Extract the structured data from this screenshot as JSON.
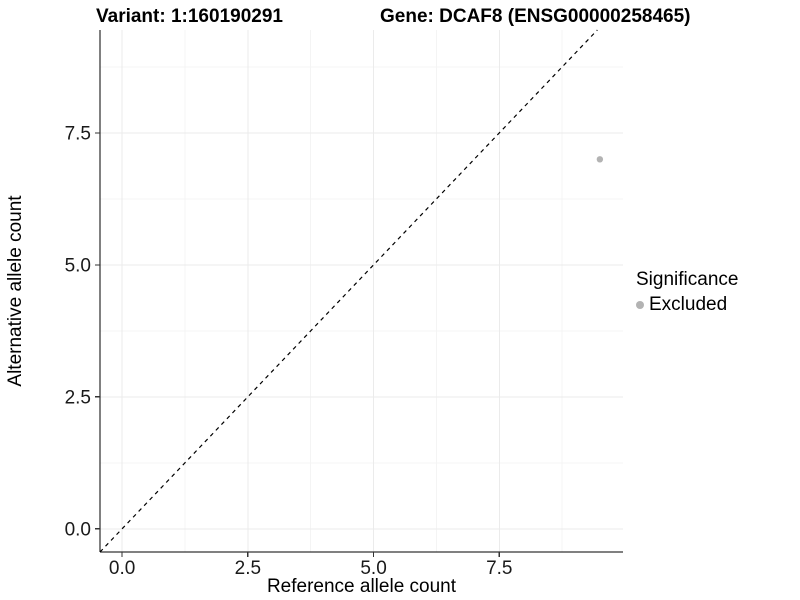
{
  "header": {
    "variant_title": "Variant: 1:160190291",
    "gene_title": "Gene: DCAF8 (ENSG00000258465)"
  },
  "chart_data": {
    "type": "scatter",
    "xlabel": "Reference allele count",
    "ylabel": "Alternative allele count",
    "x_ticks": [
      0,
      2.5,
      5,
      7.5
    ],
    "x_tick_labels": [
      "0.0",
      "2.5",
      "5.0",
      "7.5"
    ],
    "y_ticks": [
      0,
      2.5,
      5,
      7.5
    ],
    "y_tick_labels": [
      "0.0",
      "2.5",
      "5.0",
      "7.5"
    ],
    "x_minor_ticks": [
      1.25,
      3.75,
      6.25,
      8.75
    ],
    "y_minor_ticks": [
      1.25,
      3.75,
      6.25,
      8.75
    ],
    "xlim": [
      -0.44,
      9.96
    ],
    "ylim": [
      -0.44,
      9.45
    ],
    "grid": true,
    "series": [
      {
        "name": "Excluded",
        "color": "#b3b3b3",
        "points": [
          {
            "x": 9.5,
            "y": 7.0
          }
        ]
      }
    ],
    "reference_line": {
      "type": "identity",
      "slope": 1,
      "intercept": 0,
      "style": "dashed",
      "color": "#000000"
    },
    "legend": {
      "title": "Significance",
      "position": "right",
      "items": [
        {
          "label": "Excluded",
          "color": "#b3b3b3"
        }
      ]
    },
    "colors": {
      "background": "#ffffff",
      "grid_major": "#ebebeb",
      "grid_minor": "#f4f4f4",
      "axis_line": "#000000",
      "tick_text": "#1a1a1a"
    }
  }
}
